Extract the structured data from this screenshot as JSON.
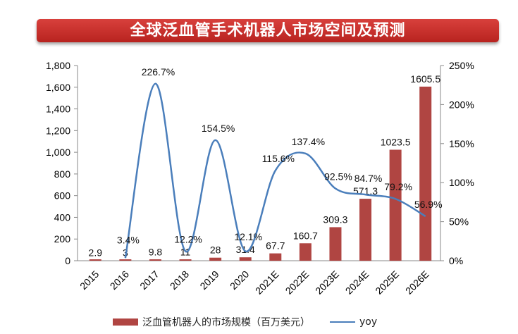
{
  "chart_data": {
    "type": "bar+line",
    "title": "全球泛血管手术机器人市场空间及预测",
    "categories": [
      "2015",
      "2016",
      "2017",
      "2018",
      "2019",
      "2020",
      "2021E",
      "2022E",
      "2023E",
      "2024E",
      "2025E",
      "2026E"
    ],
    "series": [
      {
        "name": "泛血管机器人的市场规模（百万美元）",
        "type": "bar",
        "axis": "left",
        "color": "#b04542",
        "values": [
          2.9,
          3,
          9.8,
          11,
          28,
          31.4,
          67.7,
          160.7,
          309.3,
          571.3,
          1023.5,
          1605.5
        ],
        "labels": [
          "2.9",
          "3",
          "9.8",
          "11",
          "28",
          "31.4",
          "67.7",
          "160.7",
          "309.3",
          "571.3",
          "1023.5",
          "1605.5"
        ]
      },
      {
        "name": "yoy",
        "type": "line",
        "axis": "right",
        "color": "#4a7ebb",
        "smooth": true,
        "values": [
          null,
          3.4,
          226.7,
          12.2,
          154.5,
          12.1,
          115.6,
          137.4,
          92.5,
          84.7,
          79.2,
          56.9
        ],
        "labels": [
          "",
          "3.4%",
          "226.7%",
          "12.2%",
          "154.5%",
          "12.1%",
          "115.6%",
          "137.4%",
          "92.5%",
          "84.7%",
          "79.2%",
          "56.9%"
        ]
      }
    ],
    "ylim": [
      0,
      1800
    ],
    "yticks": [
      "0",
      "200",
      "400",
      "600",
      "800",
      "1,000",
      "1,200",
      "1,400",
      "1,600",
      "1,800"
    ],
    "y2lim": [
      0,
      250
    ],
    "y2ticks": [
      "0%",
      "50%",
      "100%",
      "150%",
      "200%",
      "250%"
    ],
    "grid": false,
    "legend": "bottom"
  }
}
